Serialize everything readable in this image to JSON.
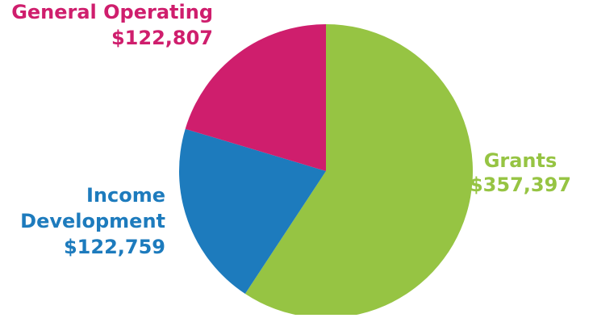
{
  "chart_data": {
    "type": "pie",
    "slices": [
      {
        "label_lines": [
          "Grants"
        ],
        "value": 357397,
        "value_text": "$357,397",
        "color": "#96c443"
      },
      {
        "label_lines": [
          "Income",
          "Development"
        ],
        "value": 122759,
        "value_text": "$122,759",
        "color": "#1d7bbd"
      },
      {
        "label_lines": [
          "General Operating"
        ],
        "value": 122807,
        "value_text": "$122,807",
        "color": "#cf1e6d"
      }
    ],
    "start_angle": "12 o'clock",
    "direction": "clockwise"
  }
}
